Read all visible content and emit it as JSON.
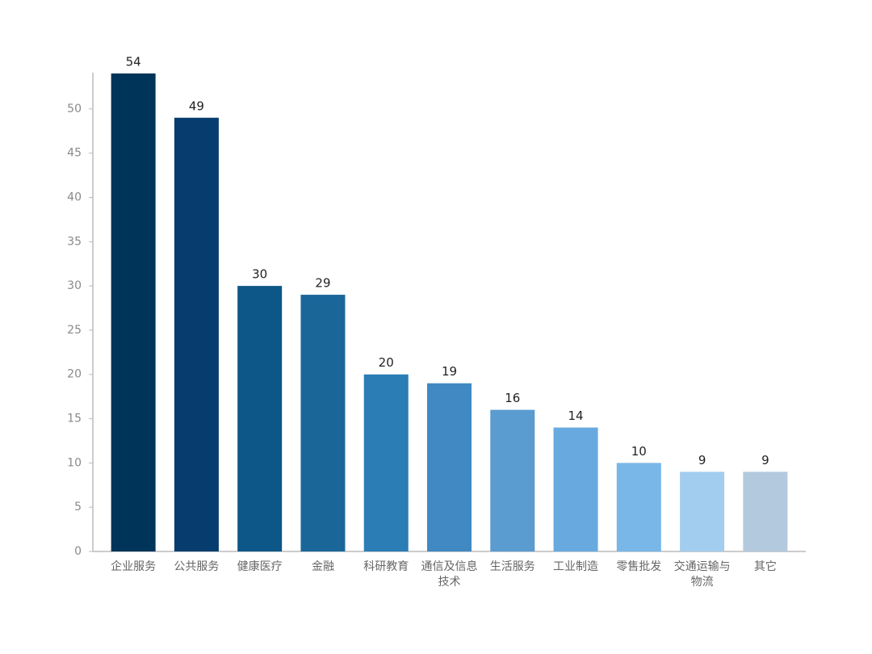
{
  "chart_data": {
    "type": "bar",
    "categories": [
      "企业服务",
      "公共服务",
      "健康医疗",
      "金融",
      "科研教育",
      "通信及信息技术",
      "生活服务",
      "工业制造",
      "零售批发",
      "交通运输与物流",
      "其它"
    ],
    "values": [
      54,
      49,
      30,
      29,
      20,
      19,
      16,
      14,
      10,
      9,
      9
    ],
    "colors": [
      "#003459",
      "#063d6e",
      "#0d5788",
      "#1b6699",
      "#2a7db5",
      "#4189c2",
      "#5a9bd0",
      "#68a9df",
      "#79b7e8",
      "#a3cdef",
      "#b3c9de"
    ],
    "ylim": [
      0,
      54
    ],
    "yticks": [
      0,
      5,
      10,
      15,
      20,
      25,
      30,
      35,
      40,
      45,
      50
    ],
    "grid": false
  }
}
